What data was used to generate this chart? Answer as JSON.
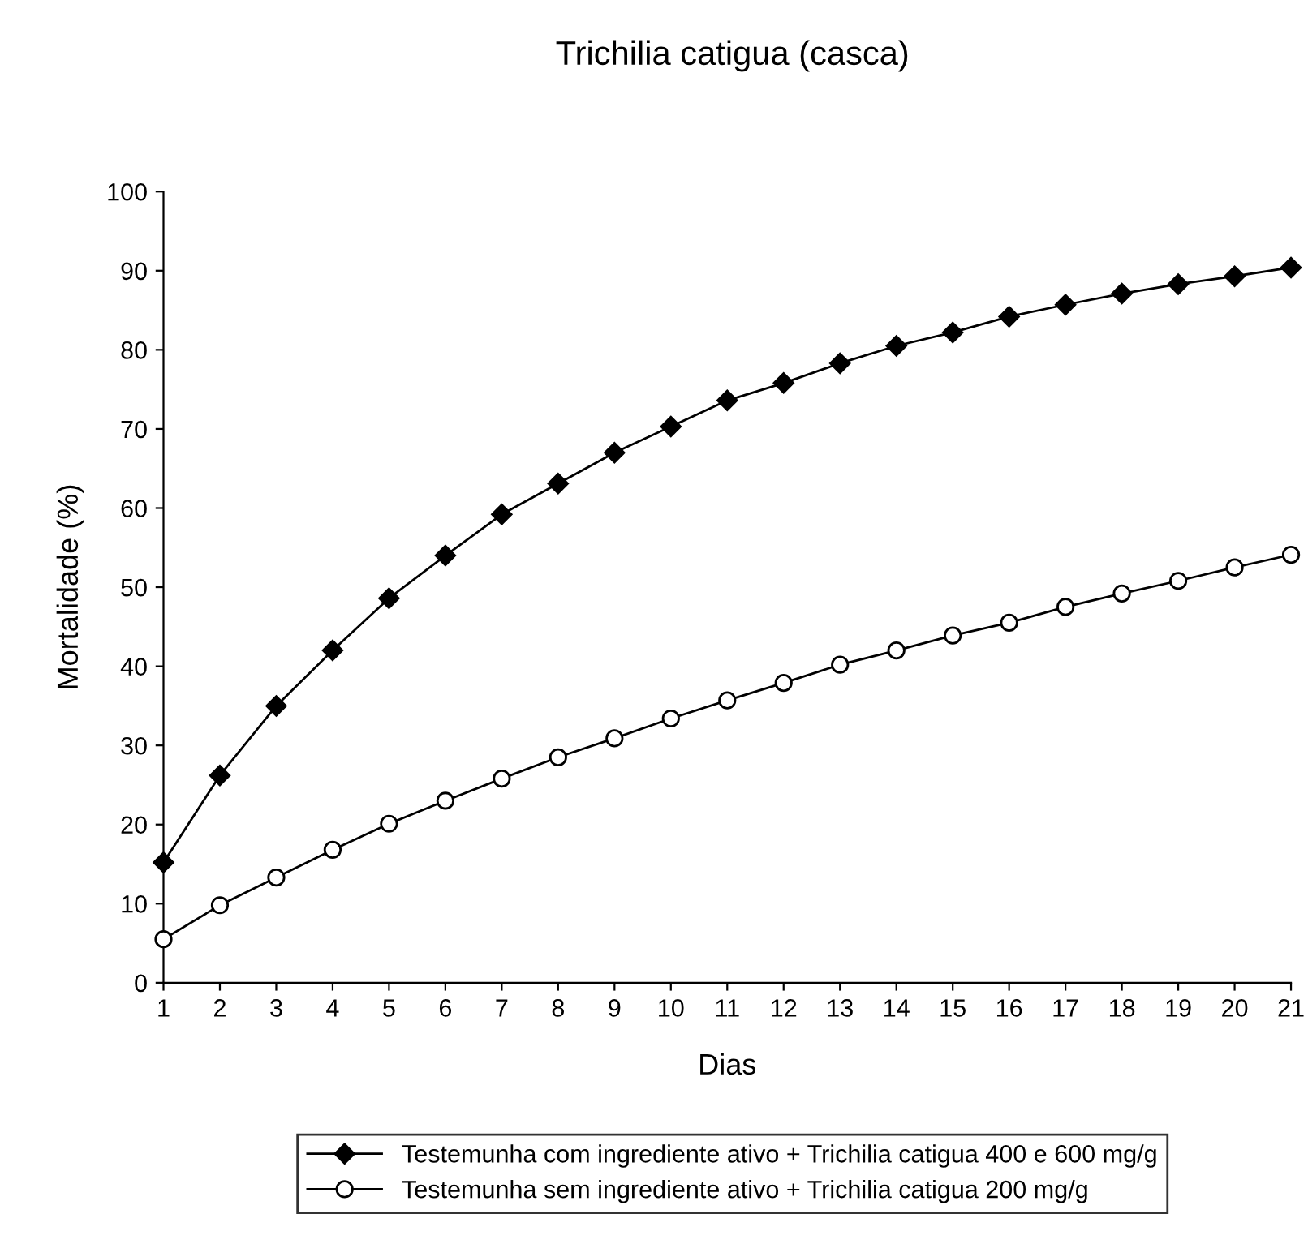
{
  "chart_data": {
    "type": "line",
    "title": "Trichilia catigua (casca)",
    "xlabel": "Dias",
    "ylabel": "Mortalidade (%)",
    "x": [
      1,
      2,
      3,
      4,
      5,
      6,
      7,
      8,
      9,
      10,
      11,
      12,
      13,
      14,
      15,
      16,
      17,
      18,
      19,
      20,
      21
    ],
    "series": [
      {
        "name": "Testemunha com ingrediente ativo + Trichilia catigua 400 e 600 mg/g",
        "color": "#000000",
        "marker": "diamond",
        "values": [
          15.2,
          26.2,
          35,
          42,
          48.6,
          54,
          59.2,
          63.1,
          67,
          70.3,
          73.6,
          75.8,
          78.3,
          80.5,
          82.2,
          84.2,
          85.7,
          87.1,
          88.3,
          89.3,
          90.4
        ]
      },
      {
        "name": "Testemunha sem ingrediente ativo + Trichilia catigua 200 mg/g",
        "color": "#ffffff",
        "marker": "circle",
        "values": [
          5.5,
          9.8,
          13.3,
          16.8,
          20.1,
          23,
          25.8,
          28.5,
          30.9,
          33.4,
          35.7,
          37.9,
          40.2,
          42,
          43.9,
          45.5,
          47.5,
          49.2,
          50.8,
          52.5,
          54.1
        ]
      }
    ],
    "xlim": [
      1,
      21
    ],
    "xticks": [
      1,
      2,
      3,
      4,
      5,
      6,
      7,
      8,
      9,
      10,
      11,
      12,
      13,
      14,
      15,
      16,
      17,
      18,
      19,
      20,
      21
    ],
    "ylim": [
      0,
      100
    ],
    "yticks": [
      0,
      10,
      20,
      30,
      40,
      50,
      60,
      70,
      80,
      90,
      100
    ],
    "grid": false,
    "legend": "bottom",
    "line_style": "solid"
  }
}
